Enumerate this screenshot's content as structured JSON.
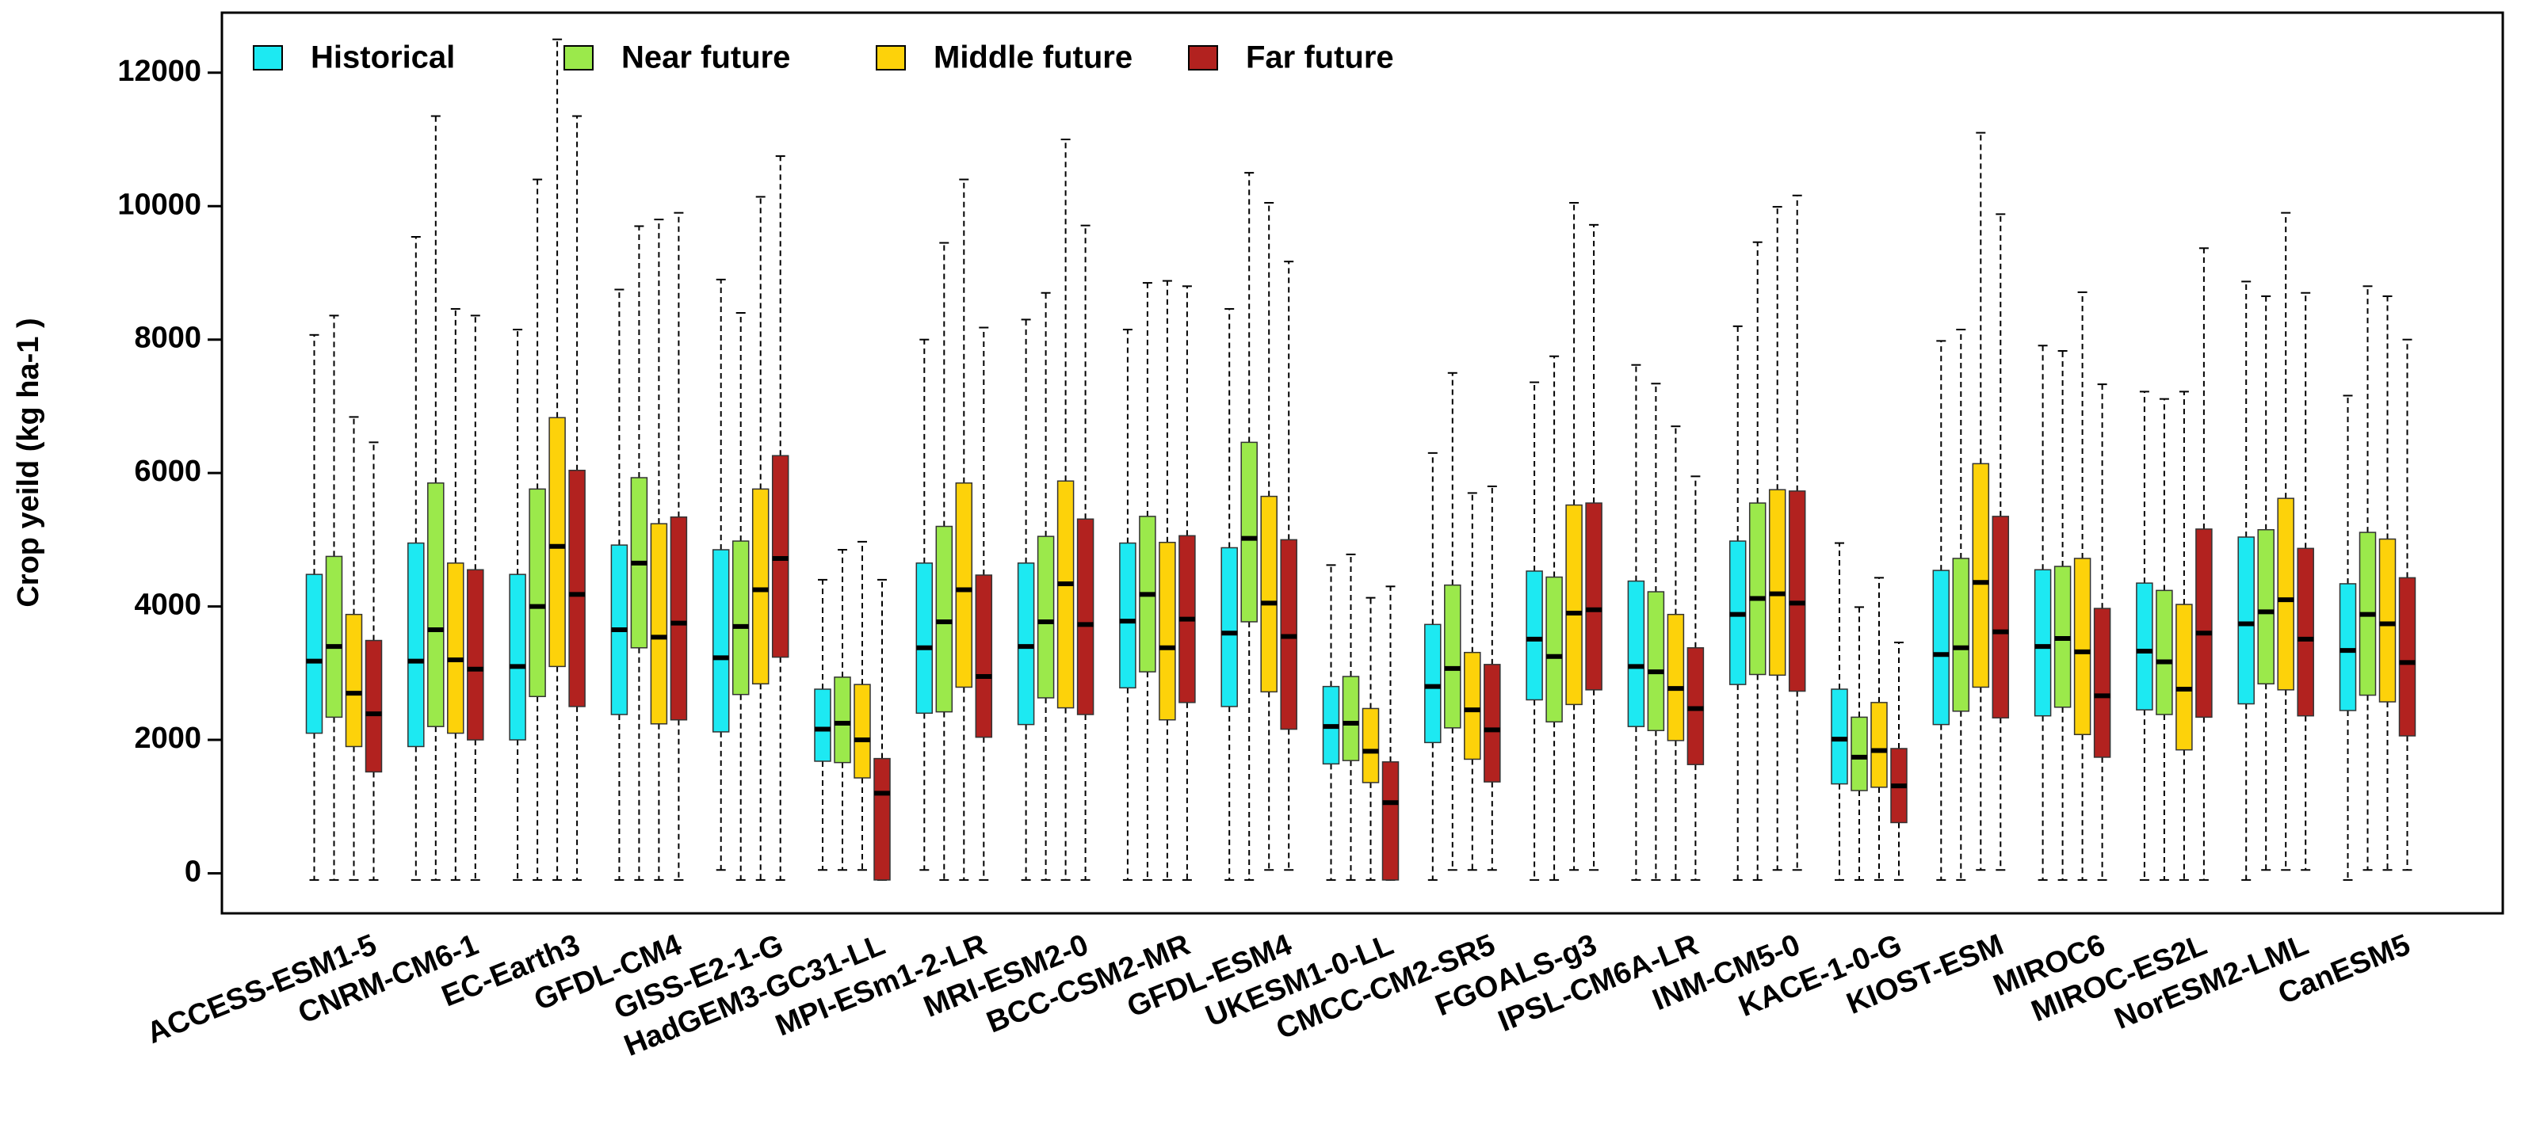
{
  "chart_data": {
    "type": "box",
    "ylabel": "Crop yeild (kg ha-1 )",
    "categories": [
      "ACCESS-ESM1-5",
      "CNRM-CM6-1",
      "EC-Earth3",
      "GFDL-CM4",
      "GISS-E2-1-G",
      "HadGEM3-GC31-LL",
      "MPI-ESm1-2-LR",
      "MRI-ESM2-0",
      "BCC-CSM2-MR",
      "GFDL-ESM4",
      "UKESM1-0-LL",
      "CMCC-CM2-SR5",
      "FGOALS-g3",
      "IPSL-CM6A-LR",
      "INM-CM5-0",
      "KACE-1-0-G",
      "KIOST-ESM",
      "MIROC6",
      "MIROC-ES2L",
      "NorESM2-LML",
      "CanESM5"
    ],
    "ylim": [
      -600,
      12900
    ],
    "yticks": [
      0,
      2000,
      4000,
      6000,
      8000,
      10000,
      12000
    ],
    "legend": "top-left",
    "series": [
      {
        "name": "Historical",
        "color": "#1de9f2",
        "values": [
          [
            -100,
            2100,
            3180,
            4480,
            8070
          ],
          [
            -100,
            1900,
            3180,
            4950,
            9540
          ],
          [
            -100,
            2000,
            3100,
            4480,
            8150
          ],
          [
            -100,
            2380,
            3650,
            4920,
            8750
          ],
          [
            50,
            2120,
            3230,
            4850,
            8900
          ],
          [
            50,
            1680,
            2160,
            2760,
            4400
          ],
          [
            50,
            2400,
            3380,
            4650,
            8000
          ],
          [
            -100,
            2230,
            3400,
            4650,
            8300
          ],
          [
            -100,
            2780,
            3780,
            4950,
            8150
          ],
          [
            -100,
            2500,
            3600,
            4880,
            8460
          ],
          [
            -100,
            1640,
            2200,
            2800,
            4620
          ],
          [
            -100,
            1960,
            2800,
            3730,
            6300
          ],
          [
            -100,
            2600,
            3510,
            4530,
            7360
          ],
          [
            -100,
            2200,
            3100,
            4380,
            7620
          ],
          [
            -100,
            2830,
            3880,
            4980,
            8200
          ],
          [
            -100,
            1340,
            2010,
            2760,
            4950
          ],
          [
            -100,
            2230,
            3280,
            4540,
            7980
          ],
          [
            -100,
            2360,
            3400,
            4550,
            7910
          ],
          [
            -100,
            2450,
            3330,
            4350,
            7220
          ],
          [
            -100,
            2540,
            3740,
            5040,
            8870
          ],
          [
            -100,
            2440,
            3340,
            4340,
            7160
          ]
        ]
      },
      {
        "name": "Near future",
        "color": "#9be94b",
        "values": [
          [
            -100,
            2340,
            3400,
            4750,
            8360
          ],
          [
            -100,
            2200,
            3650,
            5850,
            11350
          ],
          [
            -100,
            2650,
            4000,
            5760,
            10400
          ],
          [
            -100,
            3380,
            4650,
            5930,
            9700
          ],
          [
            -100,
            2680,
            3700,
            4980,
            8400
          ],
          [
            50,
            1660,
            2250,
            2940,
            4850
          ],
          [
            -100,
            2420,
            3770,
            5200,
            9450
          ],
          [
            -100,
            2630,
            3770,
            5050,
            8700
          ],
          [
            -100,
            3020,
            4180,
            5350,
            8850
          ],
          [
            -100,
            3770,
            5020,
            6460,
            10500
          ],
          [
            -100,
            1690,
            2250,
            2950,
            4780
          ],
          [
            50,
            2180,
            3070,
            4320,
            7500
          ],
          [
            -100,
            2270,
            3250,
            4440,
            7750
          ],
          [
            -100,
            2140,
            3020,
            4220,
            7340
          ],
          [
            -100,
            2980,
            4120,
            5550,
            9460
          ],
          [
            -100,
            1240,
            1740,
            2340,
            3990
          ],
          [
            -100,
            2430,
            3380,
            4720,
            8150
          ],
          [
            -100,
            2490,
            3520,
            4600,
            7830
          ],
          [
            -100,
            2380,
            3170,
            4240,
            7110
          ],
          [
            50,
            2840,
            3920,
            5150,
            8650
          ],
          [
            50,
            2670,
            3880,
            5110,
            8800
          ]
        ]
      },
      {
        "name": "Middle future",
        "color": "#fdd20a",
        "values": [
          [
            -100,
            1900,
            2700,
            3880,
            6840
          ],
          [
            -100,
            2100,
            3200,
            4650,
            8460
          ],
          [
            -100,
            3100,
            4900,
            6830,
            12500
          ],
          [
            -100,
            2240,
            3540,
            5240,
            9800
          ],
          [
            -100,
            2840,
            4250,
            5760,
            10140
          ],
          [
            50,
            1430,
            2000,
            2830,
            4970
          ],
          [
            -100,
            2790,
            4250,
            5850,
            10400
          ],
          [
            -100,
            2480,
            4340,
            5880,
            11000
          ],
          [
            -100,
            2300,
            3380,
            4960,
            8880
          ],
          [
            50,
            2720,
            4050,
            5650,
            10050
          ],
          [
            -100,
            1360,
            1830,
            2470,
            4130
          ],
          [
            50,
            1710,
            2450,
            3310,
            5700
          ],
          [
            50,
            2530,
            3900,
            5520,
            10050
          ],
          [
            -100,
            1990,
            2770,
            3880,
            6700
          ],
          [
            50,
            2970,
            4190,
            5750,
            9990
          ],
          [
            -100,
            1290,
            1840,
            2560,
            4430
          ],
          [
            50,
            2790,
            4360,
            6140,
            11100
          ],
          [
            -100,
            2080,
            3320,
            4720,
            8710
          ],
          [
            -100,
            1850,
            2760,
            4030,
            7220
          ],
          [
            50,
            2750,
            4100,
            5620,
            9900
          ],
          [
            50,
            2570,
            3740,
            5010,
            8650
          ]
        ]
      },
      {
        "name": "Far future",
        "color": "#b2221f",
        "values": [
          [
            -100,
            1520,
            2390,
            3490,
            6460
          ],
          [
            -100,
            2000,
            3060,
            4550,
            8360
          ],
          [
            -100,
            2500,
            4180,
            6040,
            11350
          ],
          [
            -100,
            2300,
            3750,
            5340,
            9900
          ],
          [
            -100,
            3240,
            4720,
            6260,
            10750
          ],
          [
            -100,
            -100,
            1200,
            1720,
            4400
          ],
          [
            -100,
            2040,
            2950,
            4470,
            8180
          ],
          [
            -100,
            2380,
            3730,
            5310,
            9710
          ],
          [
            -100,
            2560,
            3810,
            5060,
            8800
          ],
          [
            50,
            2160,
            3550,
            5000,
            9170
          ],
          [
            -100,
            -100,
            1060,
            1670,
            4300
          ],
          [
            50,
            1370,
            2150,
            3130,
            5800
          ],
          [
            50,
            2750,
            3950,
            5550,
            9720
          ],
          [
            -100,
            1630,
            2470,
            3380,
            5950
          ],
          [
            50,
            2730,
            4050,
            5730,
            10160
          ],
          [
            -100,
            760,
            1310,
            1870,
            3460
          ],
          [
            50,
            2330,
            3620,
            5350,
            9880
          ],
          [
            -100,
            1740,
            2660,
            3970,
            7330
          ],
          [
            -100,
            2340,
            3600,
            5160,
            9370
          ],
          [
            50,
            2360,
            3510,
            4870,
            8700
          ],
          [
            50,
            2060,
            3160,
            4430,
            8000
          ]
        ]
      }
    ]
  }
}
